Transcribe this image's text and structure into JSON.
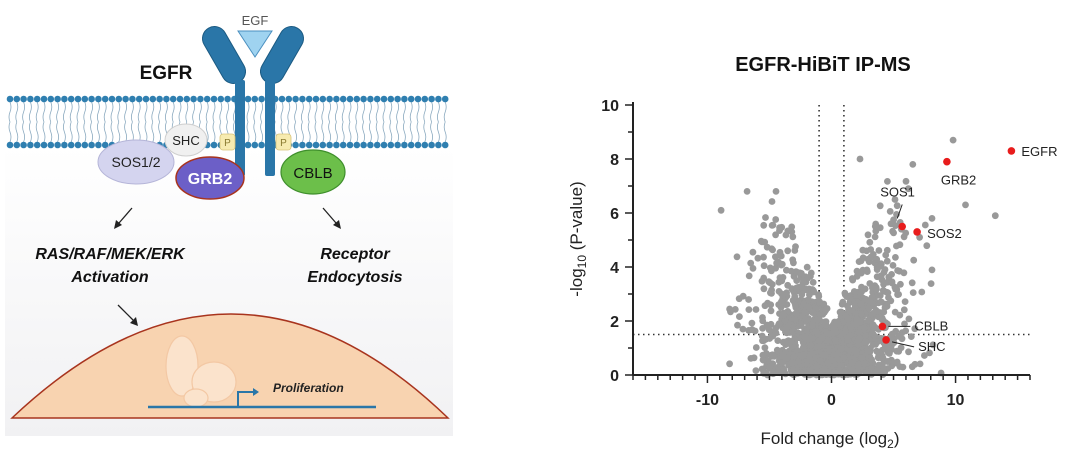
{
  "colors": {
    "receptor": "#2a76a8",
    "receptor_edge": "#1b5a82",
    "egf": "#9fd3f0",
    "membrane_head": "#2f7fb0",
    "sos": "#d4d4ef",
    "shc": "#f0f0f0",
    "grb2": "#6c5fc7",
    "phospho": "#f7ebb0",
    "cblb": "#6cbf4a",
    "nucleus": "#f8d3b0",
    "nucleus_edge": "#a8341e",
    "dna": "#2a76a8",
    "point": "#999999",
    "highlight": "#e81c1c"
  },
  "pathway": {
    "ligand_label": "EGF",
    "receptor_label": "EGFR",
    "shc_label": "SHC",
    "phospho_label": "P",
    "sos_label": "SOS1/2",
    "grb2_label": "GRB2",
    "cblb_label": "CBLB",
    "left_outcome_line1": "RAS/RAF/MEK/ERK",
    "left_outcome_line2": "Activation",
    "right_outcome_line1": "Receptor",
    "right_outcome_line2": "Endocytosis",
    "gene_label": "Proliferation"
  },
  "volcano": {
    "title": "EGFR-HiBiT IP-MS",
    "xlabel_main": "Fold change (log",
    "xlabel_sub": "2",
    "xlabel_end": ")",
    "ylabel_main": "-log",
    "ylabel_sub": "10",
    "ylabel_end": " (P-value)"
  },
  "chart_data": {
    "type": "scatter",
    "title": "EGFR-HiBiT IP-MS",
    "xlabel": "Fold change (log2)",
    "ylabel": "-log10 (P-value)",
    "xlim": [
      -16,
      16
    ],
    "ylim": [
      0,
      10
    ],
    "x_ticks": [
      -10,
      0,
      10
    ],
    "y_ticks": [
      0,
      2,
      4,
      6,
      8,
      10
    ],
    "thresholds": {
      "x": [
        -1,
        1
      ],
      "y": [
        1.5
      ]
    },
    "background_points": 1500,
    "highlighted": [
      {
        "label": "EGFR",
        "x": 14.5,
        "y": 8.3
      },
      {
        "label": "GRB2",
        "x": 9.3,
        "y": 7.9
      },
      {
        "label": "SOS1",
        "x": 5.7,
        "y": 5.5
      },
      {
        "label": "SOS2",
        "x": 6.9,
        "y": 5.3
      },
      {
        "label": "CBLB",
        "x": 4.1,
        "y": 1.8
      },
      {
        "label": "SHC",
        "x": 4.4,
        "y": 1.3
      }
    ]
  }
}
